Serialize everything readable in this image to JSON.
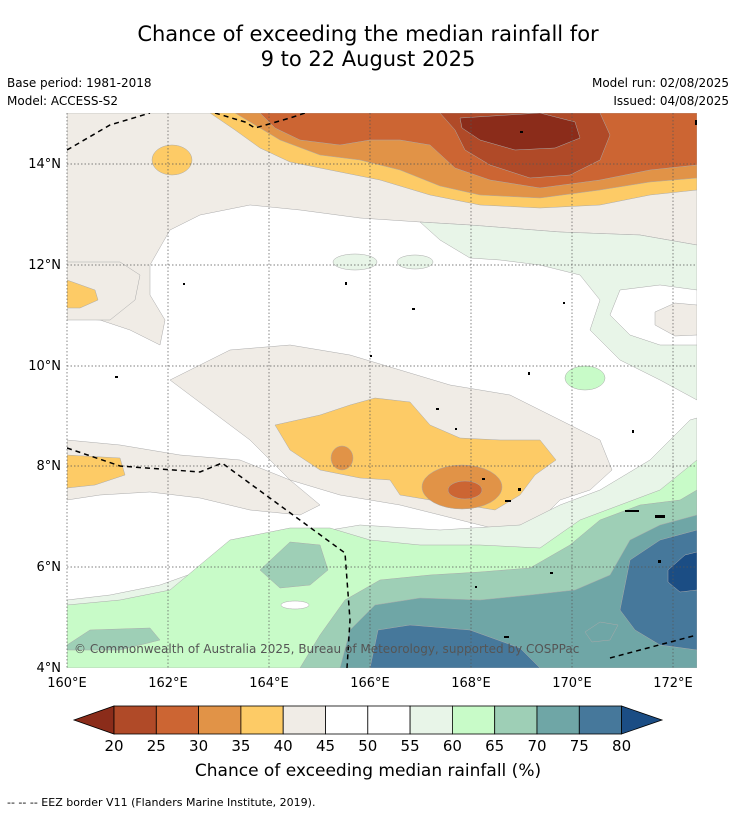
{
  "title_line1": "Chance of exceeding the median rainfall for",
  "title_line2": "9 to 22 August 2025",
  "base_period": "Base period: 1981-2018",
  "model": "Model: ACCESS-S2",
  "model_run": "Model run: 02/08/2025",
  "issued": "Issued: 04/08/2025",
  "copyright": "© Commonwealth of Australia 2025, Bureau of Meteorology, supported by COSPPac",
  "lat_labels": [
    "4°N",
    "6°N",
    "8°N",
    "10°N",
    "12°N",
    "14°N"
  ],
  "lon_labels": [
    "160°E",
    "162°E",
    "164°E",
    "166°E",
    "168°E",
    "170°E",
    "172°E"
  ],
  "colorbar_title": "Chance of exceeding median rainfall (%)",
  "colorbar_ticks": [
    "20",
    "25",
    "30",
    "35",
    "40",
    "45",
    "50",
    "55",
    "60",
    "65",
    "70",
    "75",
    "80"
  ],
  "footnote": "--  --  -- EEZ border V11 (Flanders Marine Institute, 2019).",
  "colors": {
    "lt20": "#8b2c1a",
    "20_25": "#b04a28",
    "25_30": "#cc6533",
    "30_35": "#e19347",
    "35_40": "#fdcb66",
    "40_45": "#f0ece6",
    "45_50": "#ffffff",
    "50_55": "#ffffff",
    "55_60": "#e8f5e8",
    "60_65": "#c8fbc8",
    "65_70": "#9ecfb6",
    "70_75": "#6fa6a6",
    "75_80": "#46789b",
    "gt80": "#1b4d84"
  }
}
